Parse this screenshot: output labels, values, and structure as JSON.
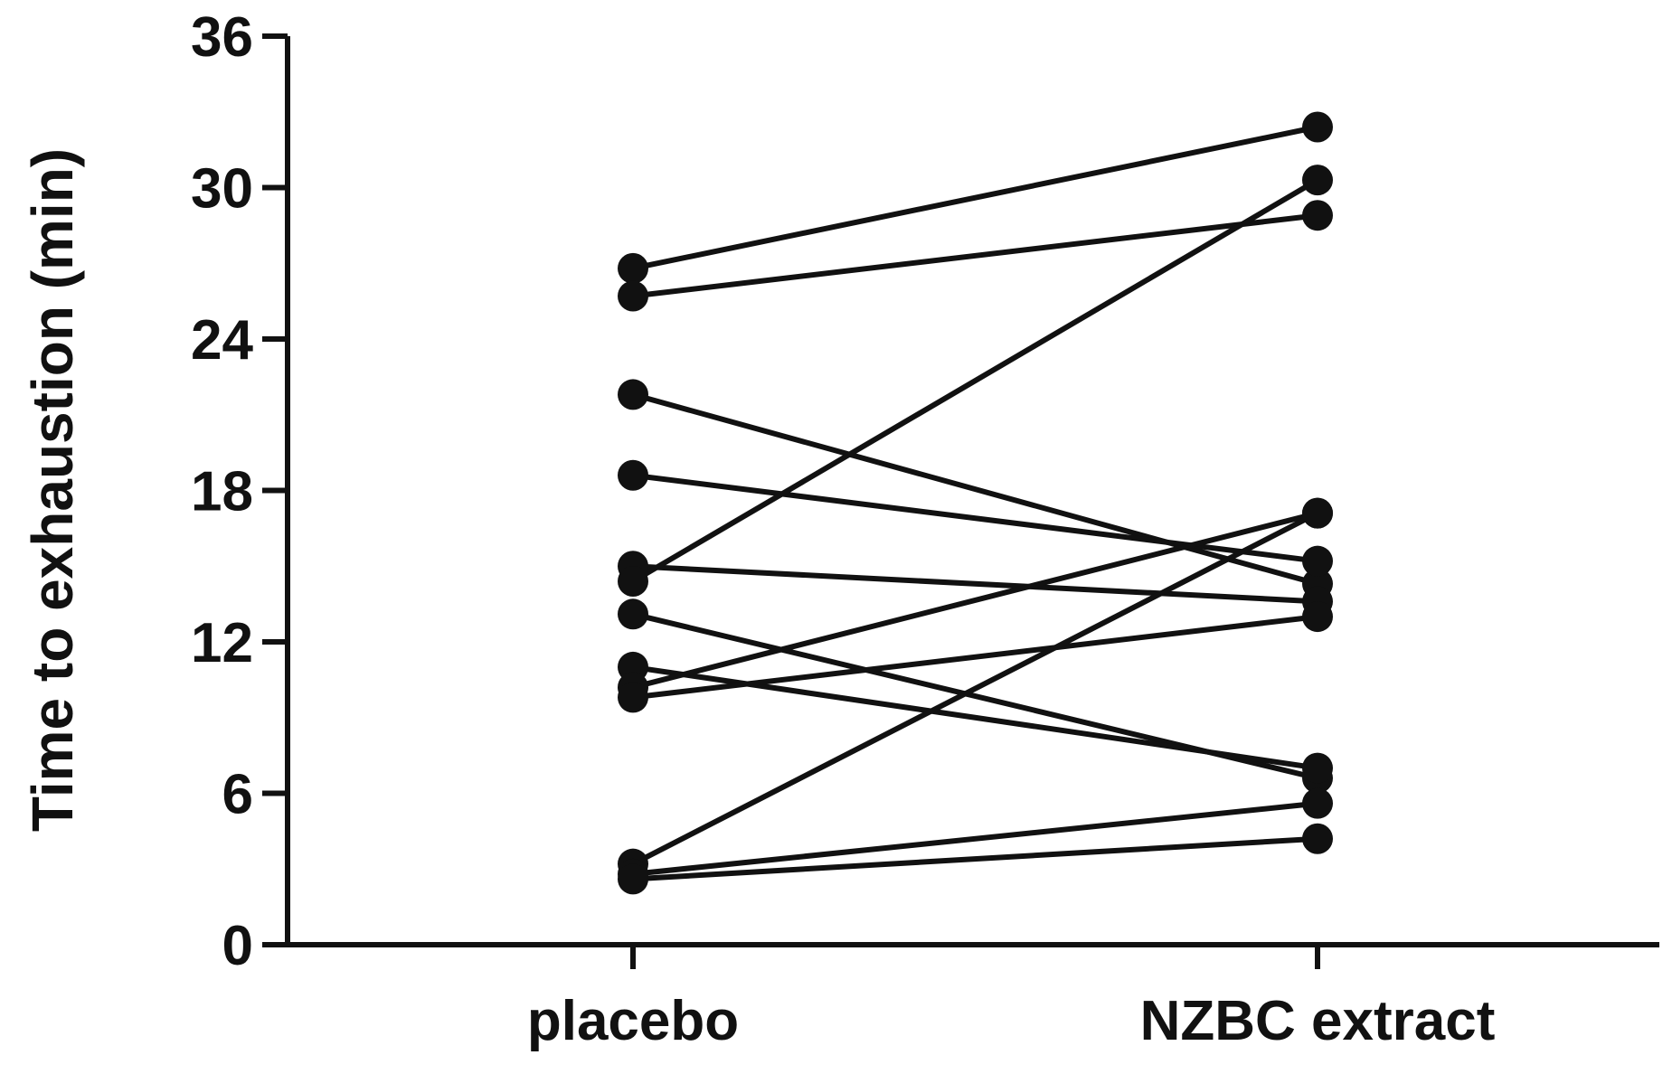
{
  "chart_data": {
    "type": "line",
    "title": "",
    "xlabel": "",
    "ylabel": "Time to exhaustion (min)",
    "categories": [
      "placebo",
      "NZBC extract"
    ],
    "yticks": [
      "0",
      "6",
      "12",
      "18",
      "24",
      "30",
      "36"
    ],
    "ylim": [
      0,
      36
    ],
    "grid": false,
    "legend": "none",
    "line_color": "#111111",
    "marker": "filled-circle",
    "series": [
      {
        "values": [
          26.8,
          32.4
        ]
      },
      {
        "values": [
          25.7,
          28.9
        ]
      },
      {
        "values": [
          21.8,
          14.3
        ]
      },
      {
        "values": [
          18.6,
          15.2
        ]
      },
      {
        "values": [
          15.0,
          13.6
        ]
      },
      {
        "values": [
          14.4,
          30.3
        ]
      },
      {
        "values": [
          13.1,
          6.6
        ]
      },
      {
        "values": [
          11.0,
          7.0
        ]
      },
      {
        "values": [
          10.2,
          17.1
        ]
      },
      {
        "values": [
          9.8,
          13.0
        ]
      },
      {
        "values": [
          3.2,
          17.1
        ]
      },
      {
        "values": [
          2.8,
          5.6
        ]
      },
      {
        "values": [
          2.6,
          4.2
        ]
      }
    ]
  }
}
